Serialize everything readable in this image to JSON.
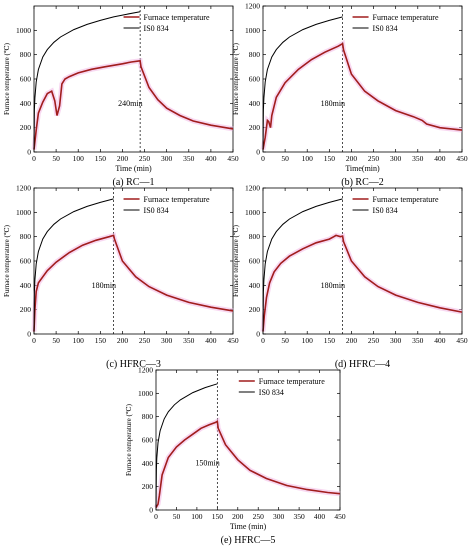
{
  "chart_data": [
    {
      "id": "a",
      "type": "line",
      "caption_letter": "(a)",
      "caption_name": "RC—1",
      "xlabel": "Time (min)",
      "ylabel": "Furnace temperature (℃)",
      "xlim": [
        0,
        450
      ],
      "ylim": [
        0,
        1200
      ],
      "xticks": [
        0,
        50,
        100,
        150,
        200,
        250,
        300,
        350,
        400,
        450
      ],
      "yticks": [
        0,
        200,
        400,
        600,
        800,
        1000
      ],
      "vline_x": 240,
      "annotation": "240min",
      "legend_position": "top-right",
      "series": [
        {
          "name": "Furnace temperature",
          "color": "#a11d1d",
          "x": [
            0,
            5,
            10,
            20,
            30,
            40,
            47,
            52,
            58,
            63,
            70,
            80,
            100,
            130,
            160,
            200,
            220,
            240,
            242,
            260,
            280,
            300,
            330,
            360,
            400,
            450
          ],
          "y": [
            20,
            180,
            320,
            410,
            480,
            500,
            420,
            300,
            380,
            560,
            600,
            620,
            650,
            680,
            700,
            725,
            740,
            750,
            700,
            530,
            430,
            360,
            300,
            255,
            220,
            190
          ]
        },
        {
          "name": "IS0 834",
          "color": "#000000",
          "x": [
            0,
            1,
            2,
            5,
            10,
            20,
            30,
            45,
            60,
            90,
            120,
            150,
            180,
            210,
            240
          ],
          "y": [
            20,
            349,
            445,
            576,
            678,
            781,
            842,
            902,
            945,
            1006,
            1049,
            1082,
            1110,
            1133,
            1153
          ]
        }
      ]
    },
    {
      "id": "b",
      "type": "line",
      "caption_letter": "(b)",
      "caption_name": "RC—2",
      "xlabel": "Time(min)",
      "ylabel": "Furnace temperature (℃)",
      "xlim": [
        0,
        450
      ],
      "ylim": [
        0,
        1200
      ],
      "xticks": [
        0,
        50,
        100,
        150,
        200,
        250,
        300,
        350,
        400,
        450
      ],
      "yticks": [
        0,
        200,
        400,
        600,
        800,
        1000,
        1200
      ],
      "vline_x": 180,
      "annotation": "180min",
      "legend_position": "top-right",
      "series": [
        {
          "name": "Furnace temperature",
          "color": "#a11d1d",
          "x": [
            0,
            5,
            10,
            13,
            17,
            20,
            30,
            50,
            80,
            110,
            140,
            170,
            180,
            182,
            200,
            230,
            260,
            300,
            340,
            360,
            370,
            400,
            450
          ],
          "y": [
            20,
            120,
            260,
            250,
            200,
            300,
            450,
            570,
            680,
            760,
            820,
            870,
            890,
            840,
            640,
            500,
            420,
            340,
            290,
            260,
            230,
            200,
            180
          ]
        },
        {
          "name": "IS0 834",
          "color": "#000000",
          "x": [
            0,
            1,
            2,
            5,
            10,
            20,
            30,
            45,
            60,
            90,
            120,
            150,
            180
          ],
          "y": [
            20,
            349,
            445,
            576,
            678,
            781,
            842,
            902,
            945,
            1006,
            1049,
            1082,
            1110
          ]
        }
      ]
    },
    {
      "id": "c",
      "type": "line",
      "caption_letter": "(c)",
      "caption_name": "HFRC—3",
      "xlabel": "",
      "ylabel": "Furnace temperature (℃)",
      "xlim": [
        0,
        450
      ],
      "ylim": [
        0,
        1200
      ],
      "xticks": [
        0,
        50,
        100,
        150,
        200,
        250,
        300,
        350,
        400,
        450
      ],
      "yticks": [
        0,
        200,
        400,
        600,
        800,
        1000,
        1200
      ],
      "vline_x": 180,
      "annotation": "180min",
      "legend_position": "top-right",
      "series": [
        {
          "name": "Furnace temperature",
          "color": "#a11d1d",
          "x": [
            0,
            2,
            5,
            10,
            20,
            30,
            50,
            80,
            110,
            140,
            170,
            180,
            182,
            200,
            230,
            260,
            300,
            350,
            400,
            450
          ],
          "y": [
            20,
            200,
            350,
            420,
            470,
            520,
            590,
            670,
            730,
            770,
            800,
            810,
            780,
            600,
            470,
            390,
            320,
            260,
            220,
            190
          ]
        },
        {
          "name": "IS0 834",
          "color": "#000000",
          "x": [
            0,
            1,
            2,
            5,
            10,
            20,
            30,
            45,
            60,
            90,
            120,
            150,
            180
          ],
          "y": [
            20,
            349,
            445,
            576,
            678,
            781,
            842,
            902,
            945,
            1006,
            1049,
            1082,
            1110
          ]
        }
      ]
    },
    {
      "id": "d",
      "type": "line",
      "caption_letter": "(d)",
      "caption_name": "HFRC—4",
      "xlabel": "",
      "ylabel": "Furnace temperature (℃)",
      "xlim": [
        0,
        450
      ],
      "ylim": [
        0,
        1200
      ],
      "xticks": [
        0,
        50,
        100,
        150,
        200,
        250,
        300,
        350,
        400,
        450
      ],
      "yticks": [
        0,
        200,
        400,
        600,
        800,
        1000,
        1200
      ],
      "vline_x": 180,
      "annotation": "180min",
      "legend_position": "top-right",
      "series": [
        {
          "name": "Furnace temperature",
          "color": "#a11d1d",
          "x": [
            0,
            3,
            8,
            15,
            25,
            40,
            60,
            90,
            120,
            150,
            160,
            165,
            175,
            180,
            182,
            200,
            230,
            260,
            300,
            350,
            400,
            450
          ],
          "y": [
            20,
            150,
            300,
            420,
            510,
            580,
            640,
            700,
            750,
            780,
            800,
            810,
            800,
            805,
            760,
            600,
            470,
            390,
            320,
            260,
            215,
            180
          ]
        },
        {
          "name": "IS0 834",
          "color": "#000000",
          "x": [
            0,
            1,
            2,
            5,
            10,
            20,
            30,
            45,
            60,
            90,
            120,
            150,
            180
          ],
          "y": [
            20,
            349,
            445,
            576,
            678,
            781,
            842,
            902,
            945,
            1006,
            1049,
            1082,
            1110
          ]
        }
      ]
    },
    {
      "id": "e",
      "type": "line",
      "caption_letter": "(e)",
      "caption_name": "HFRC—5",
      "xlabel": "Time (min)",
      "ylabel": "Furnace temperature (℃)",
      "xlim": [
        0,
        450
      ],
      "ylim": [
        0,
        1200
      ],
      "xticks": [
        0,
        50,
        100,
        150,
        200,
        250,
        300,
        350,
        400,
        450
      ],
      "yticks": [
        0,
        200,
        400,
        600,
        800,
        1000,
        1200
      ],
      "vline_x": 150,
      "annotation": "150min",
      "legend_position": "top-right",
      "series": [
        {
          "name": "Furnace temperature",
          "color": "#a11d1d",
          "x": [
            0,
            5,
            8,
            15,
            30,
            50,
            70,
            90,
            110,
            130,
            145,
            150,
            152,
            170,
            200,
            230,
            270,
            320,
            370,
            420,
            450
          ],
          "y": [
            20,
            50,
            120,
            300,
            450,
            540,
            600,
            650,
            700,
            730,
            750,
            760,
            700,
            560,
            430,
            340,
            270,
            210,
            175,
            150,
            140
          ]
        },
        {
          "name": "IS0 834",
          "color": "#000000",
          "x": [
            0,
            1,
            2,
            5,
            10,
            20,
            30,
            45,
            60,
            90,
            120,
            150
          ],
          "y": [
            20,
            349,
            445,
            576,
            678,
            781,
            842,
            902,
            945,
            1006,
            1049,
            1082
          ]
        }
      ]
    }
  ]
}
